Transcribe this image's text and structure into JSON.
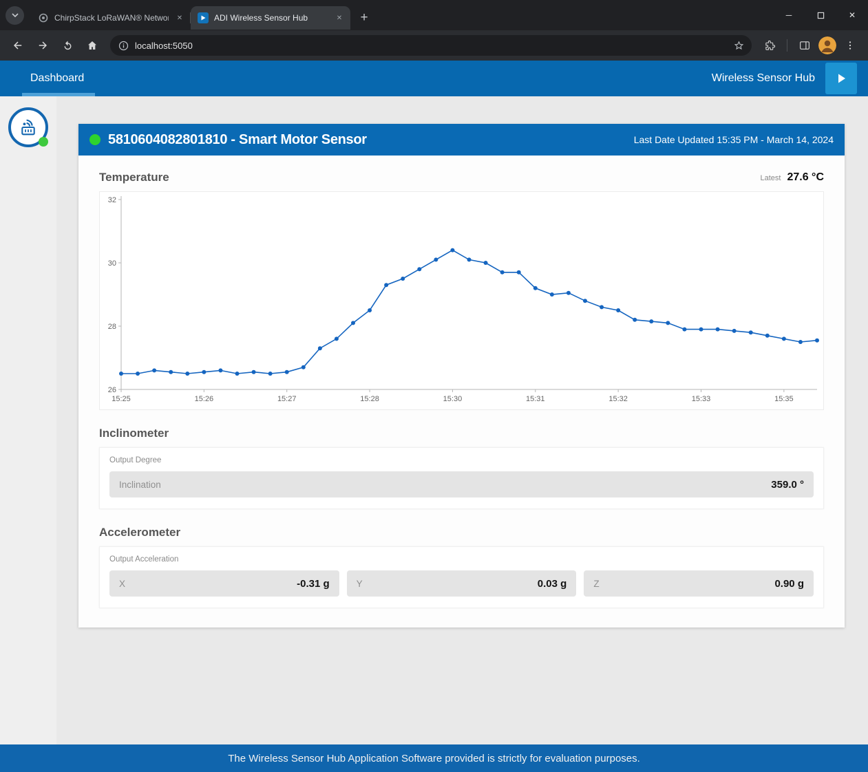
{
  "colors": {
    "accent_blue": "#0768af",
    "card_header_blue": "#0a6ab4",
    "status_green": "#2ed32e",
    "chart_line": "#1565c0"
  },
  "browser": {
    "tabs": [
      {
        "label": "ChirpStack LoRaWAN® Networ",
        "active": false
      },
      {
        "label": "ADI Wireless Sensor Hub",
        "active": true
      }
    ],
    "address": "localhost:5050"
  },
  "app": {
    "nav_dashboard": "Dashboard",
    "title": "Wireless Sensor Hub"
  },
  "device_card": {
    "title": "5810604082801810 - Smart Motor Sensor",
    "last_updated": "Last Date Updated 15:35 PM - March 14, 2024"
  },
  "temperature": {
    "heading": "Temperature",
    "latest_label": "Latest",
    "latest_value": "27.6 °C"
  },
  "inclinometer": {
    "heading": "Inclinometer",
    "group_label": "Output Degree",
    "field": {
      "label": "Inclination",
      "value": "359.0 °"
    }
  },
  "accelerometer": {
    "heading": "Accelerometer",
    "group_label": "Output Acceleration",
    "fields": [
      {
        "label": "X",
        "value": "-0.31 g"
      },
      {
        "label": "Y",
        "value": "0.03 g"
      },
      {
        "label": "Z",
        "value": "0.90 g"
      }
    ]
  },
  "footer": {
    "text": "The Wireless Sensor Hub Application Software provided is strictly for evaluation purposes."
  },
  "chart_data": {
    "type": "line",
    "title": "Temperature",
    "series_name": "Temperature (°C)",
    "ylim": [
      26,
      32
    ],
    "y_ticks": [
      26,
      28,
      30,
      32
    ],
    "x_ticks": [
      {
        "index": 0,
        "label": "15:25"
      },
      {
        "index": 5,
        "label": "15:26"
      },
      {
        "index": 10,
        "label": "15:27"
      },
      {
        "index": 15,
        "label": "15:28"
      },
      {
        "index": 20,
        "label": "15:30"
      },
      {
        "index": 25,
        "label": "15:31"
      },
      {
        "index": 30,
        "label": "15:32"
      },
      {
        "index": 35,
        "label": "15:33"
      },
      {
        "index": 40,
        "label": "15:35"
      }
    ],
    "values": [
      26.5,
      26.5,
      26.6,
      26.55,
      26.5,
      26.55,
      26.6,
      26.5,
      26.55,
      26.5,
      26.55,
      26.7,
      27.3,
      27.6,
      28.1,
      28.5,
      29.3,
      29.5,
      29.8,
      30.1,
      30.4,
      30.1,
      30.0,
      29.7,
      29.7,
      29.2,
      29.0,
      29.05,
      28.8,
      28.6,
      28.5,
      28.2,
      28.15,
      28.1,
      27.9,
      27.9,
      27.9,
      27.85,
      27.8,
      27.7,
      27.6,
      27.5,
      27.55
    ],
    "grid": false,
    "legend": false,
    "line_color": "#1565c0"
  }
}
